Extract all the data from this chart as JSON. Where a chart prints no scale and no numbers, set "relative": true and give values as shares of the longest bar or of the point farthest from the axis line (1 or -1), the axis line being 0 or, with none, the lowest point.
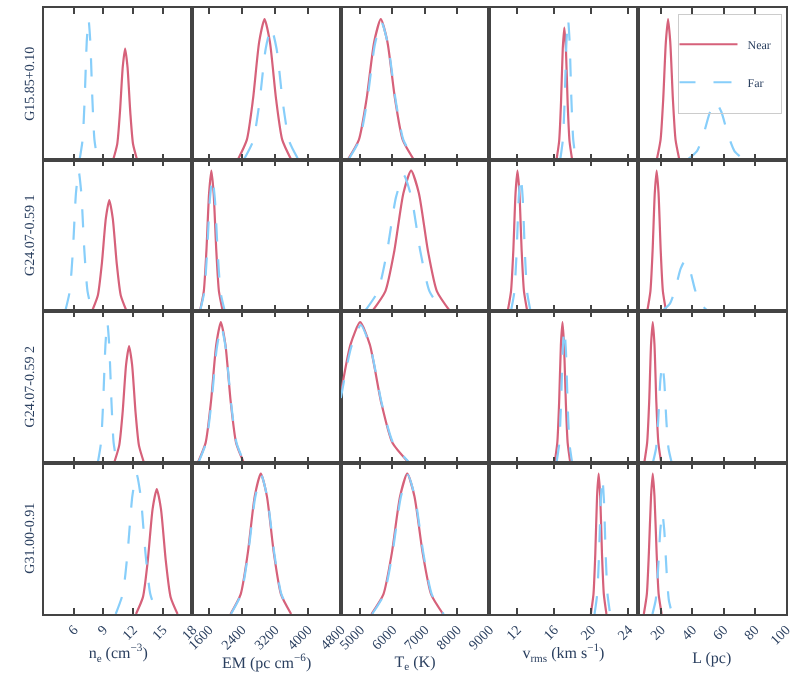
{
  "chart_data": [
    {
      "type": "line",
      "relative": true,
      "ylabel": "G15.85+0.10",
      "xlim": [
        3,
        18
      ],
      "xticks": [
        6,
        9,
        12,
        15,
        18
      ],
      "tick_labels": false,
      "series": [
        {
          "color": "#d6617a",
          "line_style": "solid",
          "x": [
            10.0,
            10.4,
            10.68,
            10.96,
            11.2,
            11.44,
            11.72,
            12.0,
            12.4
          ],
          "values": [
            0,
            0.11,
            0.34,
            0.66,
            0.79,
            0.66,
            0.34,
            0.11,
            0
          ]
        },
        {
          "color": "#87cefa",
          "line_style": "dashed",
          "x": [
            6.6,
            6.9,
            7.11,
            7.32,
            7.5,
            7.68,
            7.89,
            8.1,
            8.4
          ],
          "values": [
            0,
            0.14,
            0.43,
            0.84,
            1,
            0.84,
            0.43,
            0.14,
            0
          ]
        }
      ]
    },
    {
      "type": "line",
      "relative": true,
      "xlim": [
        1200,
        4800
      ],
      "xticks": [
        1600,
        2400,
        3200,
        4000,
        4800
      ],
      "tick_labels": false,
      "series": [
        {
          "color": "#d6617a",
          "line_style": "solid",
          "x": [
            2305,
            2520,
            2670,
            2821,
            2950,
            3079,
            3230,
            3380,
            3595
          ],
          "values": [
            0,
            0.14,
            0.43,
            0.84,
            1,
            0.84,
            0.43,
            0.14,
            0
          ]
        },
        {
          "color": "#87cefa",
          "line_style": "dashed",
          "x": [
            2450,
            2670,
            2824,
            2978,
            3110,
            3242,
            3396,
            3550,
            3770
          ],
          "values": [
            0,
            0.13,
            0.4,
            0.79,
            0.94,
            0.79,
            0.4,
            0.13,
            0
          ]
        }
      ]
    },
    {
      "type": "line",
      "relative": true,
      "xlim": [
        4400,
        9000
      ],
      "xticks": [
        5000,
        6000,
        7000,
        8000,
        9000
      ],
      "tick_labels": false,
      "series": [
        {
          "color": "#d6617a",
          "line_style": "solid",
          "x": [
            4620,
            4960,
            5198,
            5436,
            5640,
            5844,
            6082,
            6320,
            6660
          ],
          "values": [
            0,
            0.14,
            0.43,
            0.84,
            1,
            0.84,
            0.43,
            0.14,
            0
          ]
        },
        {
          "color": "#87cefa",
          "line_style": "dashed",
          "x": [
            4640,
            4980,
            5218,
            5456,
            5660,
            5864,
            6102,
            6340,
            6680
          ],
          "values": [
            0,
            0.14,
            0.42,
            0.82,
            0.98,
            0.82,
            0.42,
            0.14,
            0
          ]
        }
      ]
    },
    {
      "type": "line",
      "relative": true,
      "xlim": [
        9,
        25
      ],
      "xticks": [
        12,
        16,
        20,
        24
      ],
      "tick_labels": false,
      "series": [
        {
          "color": "#d6617a",
          "line_style": "solid",
          "x": [
            16.26,
            16.54,
            16.74,
            16.93,
            17.1,
            17.27,
            17.46,
            17.66,
            17.94
          ],
          "values": [
            0,
            0.13,
            0.4,
            0.79,
            0.94,
            0.79,
            0.4,
            0.13,
            0
          ]
        },
        {
          "color": "#87cefa",
          "line_style": "dashed",
          "x": [
            16.66,
            16.94,
            17.14,
            17.33,
            17.5,
            17.67,
            17.86,
            18.06,
            18.34
          ],
          "values": [
            0,
            0.14,
            0.43,
            0.84,
            1,
            0.84,
            0.43,
            0.14,
            0
          ]
        }
      ]
    },
    {
      "type": "line",
      "relative": true,
      "xlim": [
        5,
        100
      ],
      "xticks": [
        20,
        40,
        60,
        80,
        100
      ],
      "tick_labels": false,
      "legend": "top right",
      "series": [
        {
          "name": "Near",
          "color": "#d6617a",
          "line_style": "solid",
          "x": [
            17.3,
            19.7,
            21.4,
            23.1,
            24.5,
            25.9,
            27.6,
            29.3,
            31.7
          ],
          "values": [
            0,
            0.14,
            0.43,
            0.84,
            1,
            0.84,
            0.43,
            0.14,
            0
          ]
        },
        {
          "name": "Far",
          "color": "#87cefa",
          "line_style": "dashed",
          "x": [
            37,
            43,
            47.2,
            51.4,
            55,
            58.6,
            62.8,
            67,
            73
          ],
          "values": [
            0,
            0.06,
            0.18,
            0.34,
            0.41,
            0.34,
            0.18,
            0.06,
            0
          ]
        }
      ]
    },
    {
      "type": "line",
      "relative": true,
      "ylabel": "G24.07-0.59 1",
      "xlim": [
        3,
        18
      ],
      "xticks": [
        6,
        9,
        12,
        15,
        18
      ],
      "tick_labels": false,
      "series": [
        {
          "color": "#d6617a",
          "line_style": "solid",
          "x": [
            7.86,
            8.44,
            8.85,
            9.25,
            9.6,
            9.95,
            10.35,
            10.76,
            11.34
          ],
          "values": [
            0,
            0.11,
            0.34,
            0.66,
            0.79,
            0.66,
            0.34,
            0.11,
            0
          ]
        },
        {
          "color": "#87cefa",
          "line_style": "dashed",
          "x": [
            5.15,
            5.6,
            5.92,
            6.23,
            6.5,
            6.77,
            7.08,
            7.4,
            7.85
          ],
          "values": [
            0,
            0.14,
            0.43,
            0.84,
            1,
            0.84,
            0.43,
            0.14,
            0
          ]
        }
      ]
    },
    {
      "type": "line",
      "relative": true,
      "xlim": [
        1200,
        4800
      ],
      "xticks": [
        1600,
        2400,
        3200,
        4000,
        4800
      ],
      "tick_labels": false,
      "series": [
        {
          "color": "#d6617a",
          "line_style": "solid",
          "x": [
            1384,
            1476,
            1540,
            1605,
            1660,
            1715,
            1780,
            1844,
            1936
          ],
          "values": [
            0,
            0.14,
            0.43,
            0.84,
            1,
            0.84,
            0.43,
            0.14,
            0
          ]
        },
        {
          "color": "#87cefa",
          "line_style": "dashed",
          "x": [
            1385,
            1485,
            1555,
            1625,
            1685,
            1745,
            1815,
            1885,
            1985
          ],
          "values": [
            0,
            0.13,
            0.41,
            0.8,
            0.95,
            0.8,
            0.41,
            0.13,
            0
          ]
        }
      ]
    },
    {
      "type": "line",
      "relative": true,
      "xlim": [
        4400,
        9000
      ],
      "xticks": [
        5000,
        6000,
        7000,
        8000,
        9000
      ],
      "tick_labels": false,
      "series": [
        {
          "color": "#d6617a",
          "line_style": "solid",
          "x": [
            5380,
            5780,
            6060,
            6340,
            6580,
            6820,
            7100,
            7380,
            7780
          ],
          "values": [
            0,
            0.14,
            0.43,
            0.84,
            1,
            0.84,
            0.43,
            0.14,
            0
          ]
        },
        {
          "color": "#87cefa",
          "line_style": "dashed",
          "x": [
            5150,
            5550,
            5830,
            6110,
            6350,
            6590,
            6870,
            7150,
            7550
          ],
          "values": [
            0,
            0.14,
            0.42,
            0.81,
            0.97,
            0.81,
            0.42,
            0.14,
            0
          ]
        }
      ]
    },
    {
      "type": "line",
      "relative": true,
      "xlim": [
        9,
        25
      ],
      "xticks": [
        12,
        16,
        20,
        24
      ],
      "tick_labels": false,
      "series": [
        {
          "color": "#d6617a",
          "line_style": "solid",
          "x": [
            11.0,
            11.35,
            11.6,
            11.84,
            12.05,
            12.26,
            12.5,
            12.75,
            13.1
          ],
          "values": [
            0,
            0.14,
            0.43,
            0.84,
            1,
            0.84,
            0.43,
            0.14,
            0
          ]
        },
        {
          "color": "#87cefa",
          "line_style": "dashed",
          "x": [
            11.35,
            11.7,
            11.95,
            12.19,
            12.4,
            12.61,
            12.85,
            13.1,
            13.45
          ],
          "values": [
            0,
            0.13,
            0.41,
            0.81,
            0.96,
            0.81,
            0.41,
            0.13,
            0
          ]
        }
      ]
    },
    {
      "type": "line",
      "relative": true,
      "xlim": [
        5,
        100
      ],
      "xticks": [
        20,
        40,
        60,
        80,
        100
      ],
      "tick_labels": false,
      "series": [
        {
          "color": "#d6617a",
          "line_style": "solid",
          "x": [
            11.2,
            13.2,
            14.6,
            16.0,
            17.2,
            18.4,
            19.8,
            21.2,
            23.2
          ],
          "values": [
            0,
            0.14,
            0.43,
            0.84,
            1,
            0.84,
            0.43,
            0.14,
            0
          ]
        },
        {
          "color": "#87cefa",
          "line_style": "dashed",
          "x": [
            20.7,
            25.6,
            29.0,
            32.5,
            35.4,
            38.3,
            41.8,
            45.2,
            50.1
          ],
          "values": [
            0,
            0.05,
            0.15,
            0.3,
            0.36,
            0.3,
            0.15,
            0.05,
            0
          ]
        }
      ]
    },
    {
      "type": "line",
      "relative": true,
      "ylabel": "G24.07-0.59 2",
      "xlim": [
        3,
        18
      ],
      "xticks": [
        6,
        9,
        12,
        15,
        18
      ],
      "tick_labels": false,
      "series": [
        {
          "color": "#d6617a",
          "line_style": "solid",
          "x": [
            10.1,
            10.6,
            10.95,
            11.3,
            11.6,
            11.9,
            12.25,
            12.6,
            13.1
          ],
          "values": [
            0,
            0.12,
            0.36,
            0.7,
            0.83,
            0.7,
            0.36,
            0.12,
            0
          ]
        },
        {
          "color": "#87cefa",
          "line_style": "dashed",
          "x": [
            8.44,
            8.76,
            8.98,
            9.21,
            9.4,
            9.59,
            9.82,
            10.04,
            10.36
          ],
          "values": [
            0,
            0.14,
            0.43,
            0.84,
            1,
            0.84,
            0.43,
            0.14,
            0
          ]
        }
      ]
    },
    {
      "type": "line",
      "relative": true,
      "xlim": [
        1200,
        4800
      ],
      "xticks": [
        1600,
        2400,
        3200,
        4000,
        4800
      ],
      "tick_labels": false,
      "series": [
        {
          "color": "#d6617a",
          "line_style": "solid",
          "x": [
            1335,
            1520,
            1650,
            1779,
            1890,
            2001,
            2130,
            2260,
            2445
          ],
          "values": [
            0,
            0.14,
            0.43,
            0.84,
            1,
            0.84,
            0.43,
            0.14,
            0
          ]
        },
        {
          "color": "#87cefa",
          "line_style": "dashed",
          "x": [
            1345,
            1530,
            1660,
            1789,
            1900,
            2011,
            2140,
            2270,
            2455
          ],
          "values": [
            0,
            0.14,
            0.42,
            0.81,
            0.97,
            0.81,
            0.42,
            0.14,
            0
          ]
        }
      ]
    },
    {
      "type": "line",
      "relative": true,
      "xlim": [
        4400,
        9000
      ],
      "xticks": [
        5000,
        6000,
        7000,
        8000,
        9000
      ],
      "tick_labels": false,
      "series": [
        {
          "color": "#d6617a",
          "line_style": "solid",
          "x": [
            4400,
            4700,
            5000,
            5300,
            5650,
            6000,
            6500
          ],
          "values": [
            0.49,
            0.84,
            1,
            0.84,
            0.43,
            0.14,
            0
          ]
        },
        {
          "color": "#87cefa",
          "line_style": "dashed",
          "x": [
            4400,
            4720,
            5020,
            5320,
            5670,
            6020,
            6520
          ],
          "values": [
            0.46,
            0.82,
            0.98,
            0.82,
            0.42,
            0.14,
            0
          ]
        }
      ]
    },
    {
      "type": "line",
      "relative": true,
      "xlim": [
        9,
        25
      ],
      "xticks": [
        12,
        16,
        20,
        24
      ],
      "tick_labels": false,
      "series": [
        {
          "color": "#d6617a",
          "line_style": "solid",
          "x": [
            16.06,
            16.34,
            16.54,
            16.73,
            16.9,
            17.07,
            17.26,
            17.46,
            17.74
          ],
          "values": [
            0,
            0.14,
            0.43,
            0.84,
            1,
            0.84,
            0.43,
            0.14,
            0
          ]
        },
        {
          "color": "#87cefa",
          "line_style": "dashed",
          "x": [
            16.26,
            16.54,
            16.74,
            16.93,
            17.1,
            17.27,
            17.46,
            17.66,
            17.94
          ],
          "values": [
            0,
            0.13,
            0.41,
            0.8,
            0.95,
            0.8,
            0.41,
            0.13,
            0
          ]
        }
      ]
    },
    {
      "type": "line",
      "relative": true,
      "xlim": [
        5,
        100
      ],
      "xticks": [
        20,
        40,
        60,
        80,
        100
      ],
      "tick_labels": false,
      "series": [
        {
          "color": "#d6617a",
          "line_style": "solid",
          "x": [
            9.3,
            11.1,
            12.4,
            13.6,
            14.7,
            15.8,
            17.0,
            18.3,
            20.1
          ],
          "values": [
            0,
            0.14,
            0.43,
            0.84,
            1,
            0.84,
            0.43,
            0.14,
            0
          ]
        },
        {
          "color": "#87cefa",
          "line_style": "dashed",
          "x": [
            14.8,
            16.8,
            18.2,
            19.6,
            20.8,
            22.0,
            23.4,
            24.8,
            26.8
          ],
          "values": [
            0,
            0.1,
            0.3,
            0.59,
            0.7,
            0.59,
            0.3,
            0.1,
            0
          ]
        }
      ]
    },
    {
      "type": "line",
      "relative": true,
      "ylabel": "G31.00-0.91",
      "xlabel": "n$_{e}$ (cm$^{−3}$)",
      "xlim": [
        3,
        18
      ],
      "xticks": [
        6,
        9,
        12,
        15,
        18
      ],
      "tick_labels": "x",
      "series": [
        {
          "color": "#d6617a",
          "line_style": "solid",
          "x": [
            12.3,
            13.0,
            13.49,
            13.98,
            14.4,
            14.82,
            15.31,
            15.8,
            16.5
          ],
          "values": [
            0,
            0.12,
            0.38,
            0.75,
            0.89,
            0.75,
            0.38,
            0.12,
            0
          ]
        },
        {
          "color": "#87cefa",
          "line_style": "dashed",
          "x": [
            10.25,
            10.95,
            11.44,
            11.93,
            12.35,
            12.77,
            13.26,
            13.75,
            14.45
          ],
          "values": [
            0,
            0.14,
            0.43,
            0.84,
            1,
            0.84,
            0.43,
            0.14,
            0
          ]
        }
      ]
    },
    {
      "type": "line",
      "relative": true,
      "xlabel": "EM (pc cm$^{−6}$)",
      "xlim": [
        1200,
        4800
      ],
      "xticks": [
        1600,
        2400,
        3200,
        4000,
        4800
      ],
      "tick_labels": "x",
      "series": [
        {
          "color": "#d6617a",
          "line_style": "solid",
          "x": [
            2125,
            2370,
            2542,
            2713,
            2860,
            3007,
            3178,
            3350,
            3595
          ],
          "values": [
            0,
            0.14,
            0.43,
            0.84,
            1,
            0.84,
            0.43,
            0.14,
            0
          ]
        },
        {
          "color": "#87cefa",
          "line_style": "dashed",
          "x": [
            2135,
            2380,
            2552,
            2723,
            2870,
            3017,
            3188,
            3360,
            3605
          ],
          "values": [
            0,
            0.14,
            0.43,
            0.83,
            0.99,
            0.83,
            0.43,
            0.14,
            0
          ]
        }
      ]
    },
    {
      "type": "line",
      "relative": true,
      "xlabel": "T$_{e}$ (K)",
      "xlim": [
        4400,
        9000
      ],
      "xticks": [
        5000,
        6000,
        7000,
        8000,
        9000
      ],
      "tick_labels": "x",
      "series": [
        {
          "color": "#d6617a",
          "line_style": "solid",
          "x": [
            5350,
            5720,
            5979,
            6238,
            6460,
            6682,
            6941,
            7200,
            7570
          ],
          "values": [
            0,
            0.14,
            0.43,
            0.84,
            1,
            0.84,
            0.43,
            0.14,
            0
          ]
        },
        {
          "color": "#87cefa",
          "line_style": "dashed",
          "x": [
            5370,
            5740,
            5999,
            6258,
            6480,
            6702,
            6961,
            7220,
            7590
          ],
          "values": [
            0,
            0.14,
            0.43,
            0.83,
            0.99,
            0.83,
            0.43,
            0.14,
            0
          ]
        }
      ]
    },
    {
      "type": "line",
      "relative": true,
      "xlabel": "v$_{rms}$ (km s$^{−1}$)",
      "xlim": [
        9,
        25
      ],
      "xticks": [
        12,
        16,
        20,
        24
      ],
      "tick_labels": "x",
      "series": [
        {
          "color": "#d6617a",
          "line_style": "solid",
          "x": [
            19.96,
            20.24,
            20.44,
            20.63,
            20.8,
            20.97,
            21.16,
            21.36,
            21.64
          ],
          "values": [
            0,
            0.14,
            0.43,
            0.84,
            1,
            0.84,
            0.43,
            0.14,
            0
          ]
        },
        {
          "color": "#87cefa",
          "line_style": "dashed",
          "x": [
            20.36,
            20.64,
            20.84,
            21.03,
            21.2,
            21.37,
            21.56,
            21.76,
            22.04
          ],
          "values": [
            0,
            0.14,
            0.42,
            0.81,
            0.97,
            0.81,
            0.42,
            0.14,
            0
          ]
        }
      ]
    },
    {
      "type": "line",
      "relative": true,
      "xlabel": "L (pc)",
      "xlim": [
        5,
        100
      ],
      "xticks": [
        20,
        40,
        60,
        80,
        100
      ],
      "tick_labels": "x",
      "series": [
        {
          "color": "#d6617a",
          "line_style": "solid",
          "x": [
            9.0,
            10.9,
            12.2,
            13.6,
            14.7,
            15.8,
            17.2,
            18.5,
            20.4
          ],
          "values": [
            0,
            0.14,
            0.43,
            0.84,
            1,
            0.84,
            0.43,
            0.14,
            0
          ]
        },
        {
          "color": "#87cefa",
          "line_style": "dashed",
          "x": [
            14.5,
            16.6,
            18.07,
            19.54,
            20.8,
            22.06,
            23.53,
            25.0,
            27.1
          ],
          "values": [
            0,
            0.1,
            0.31,
            0.6,
            0.72,
            0.6,
            0.31,
            0.1,
            0
          ]
        }
      ]
    }
  ]
}
